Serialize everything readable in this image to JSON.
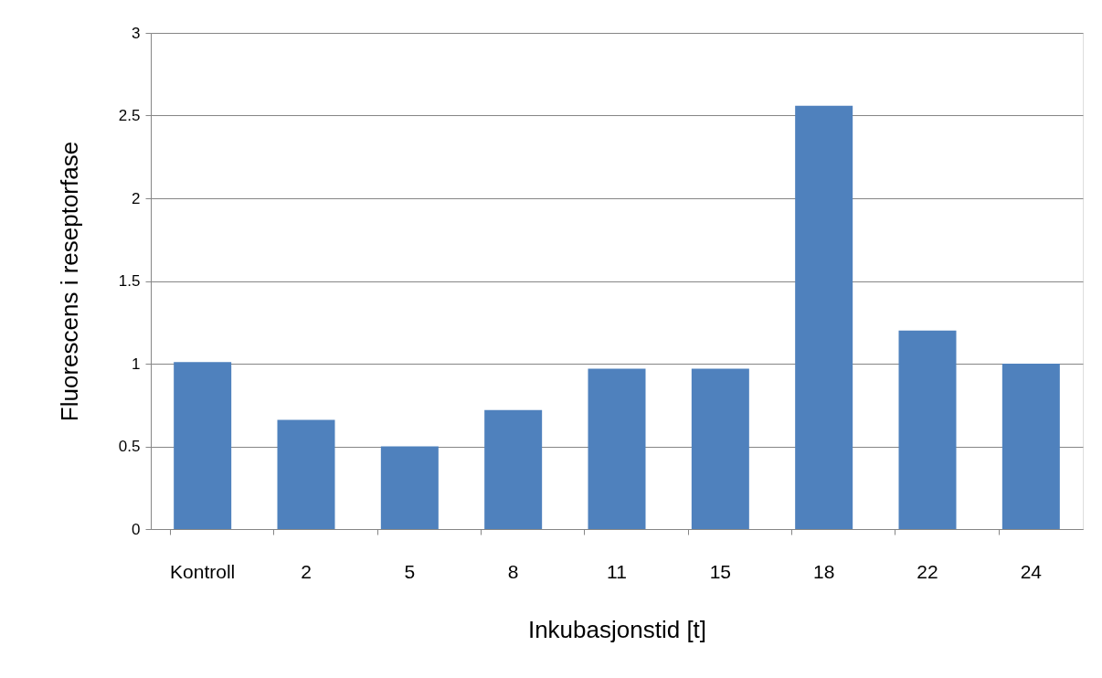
{
  "chart_data": {
    "type": "bar",
    "xlabel": "Inkubasjonstid [t]",
    "ylabel": "Fluorescens i reseptorfase",
    "categories": [
      "Kontroll",
      "2",
      "5",
      "8",
      "11",
      "15",
      "18",
      "22",
      "24"
    ],
    "values": [
      1.01,
      0.66,
      0.5,
      0.72,
      0.97,
      0.97,
      2.56,
      1.2,
      1.0
    ],
    "color": "#4f81bd",
    "ylim": [
      0,
      3
    ],
    "yticks": [
      0,
      0.5,
      1,
      1.5,
      2,
      2.5,
      3
    ],
    "grid": "y"
  }
}
